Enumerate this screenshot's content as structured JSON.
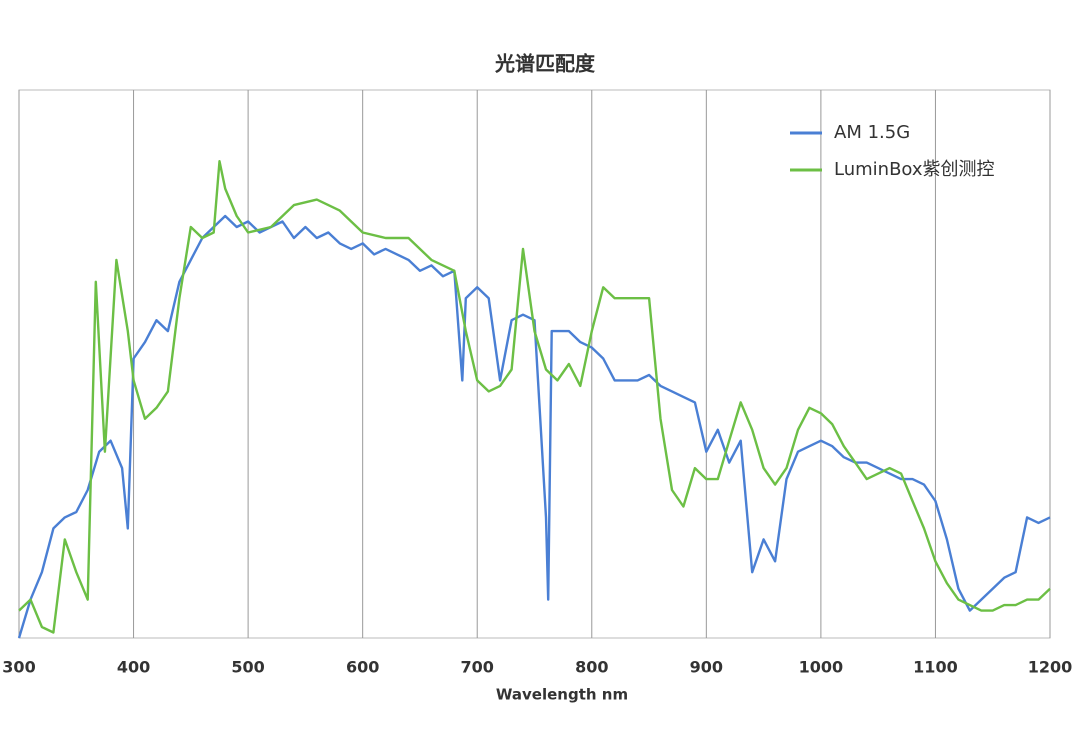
{
  "chart_data": {
    "type": "line",
    "title": "光谱匹配度",
    "x_label": "Wavelength nm",
    "xlim": [
      300,
      1200
    ],
    "xticks": [
      300,
      400,
      500,
      600,
      700,
      800,
      900,
      1000,
      1100,
      1200
    ],
    "ylim": [
      0,
      100
    ],
    "grid": true,
    "legend": "upper right",
    "series": [
      {
        "name": "AM 1.5G",
        "color": "#4a7fd4",
        "x": [
          300,
          310,
          320,
          330,
          340,
          350,
          360,
          370,
          380,
          390,
          395,
          400,
          410,
          420,
          430,
          440,
          450,
          460,
          470,
          480,
          490,
          500,
          510,
          520,
          530,
          540,
          550,
          560,
          570,
          580,
          590,
          600,
          610,
          620,
          630,
          640,
          650,
          660,
          670,
          680,
          687,
          690,
          700,
          710,
          720,
          730,
          740,
          750,
          760,
          762,
          765,
          780,
          790,
          800,
          810,
          820,
          830,
          840,
          850,
          860,
          870,
          880,
          890,
          900,
          910,
          920,
          930,
          940,
          950,
          960,
          970,
          980,
          990,
          1000,
          1010,
          1020,
          1030,
          1040,
          1050,
          1060,
          1070,
          1080,
          1090,
          1100,
          1110,
          1120,
          1130,
          1140,
          1150,
          1160,
          1170,
          1180,
          1190,
          1200
        ],
        "values": [
          0,
          7,
          12,
          20,
          22,
          23,
          27,
          34,
          36,
          31,
          20,
          51,
          54,
          58,
          56,
          65,
          69,
          73,
          75,
          77,
          75,
          76,
          74,
          75,
          76,
          73,
          75,
          73,
          74,
          72,
          71,
          72,
          70,
          71,
          70,
          69,
          67,
          68,
          66,
          67,
          47,
          62,
          64,
          62,
          47,
          58,
          59,
          58,
          22,
          7,
          56,
          56,
          54,
          53,
          51,
          47,
          47,
          47,
          48,
          46,
          45,
          44,
          43,
          34,
          38,
          32,
          36,
          12,
          18,
          14,
          29,
          34,
          35,
          36,
          35,
          33,
          32,
          32,
          31,
          30,
          29,
          29,
          28,
          25,
          18,
          9,
          5,
          7,
          9,
          11,
          12,
          22,
          21,
          22
        ]
      },
      {
        "name": "LuminBox紫创测控",
        "color": "#6cbf45",
        "x": [
          300,
          310,
          320,
          330,
          340,
          350,
          360,
          367,
          375,
          385,
          395,
          400,
          410,
          420,
          430,
          440,
          450,
          460,
          470,
          475,
          480,
          490,
          500,
          520,
          540,
          560,
          580,
          600,
          620,
          640,
          660,
          680,
          690,
          700,
          710,
          720,
          730,
          740,
          750,
          760,
          770,
          780,
          790,
          800,
          810,
          820,
          830,
          840,
          850,
          860,
          870,
          880,
          890,
          900,
          910,
          920,
          930,
          940,
          950,
          960,
          970,
          980,
          990,
          1000,
          1010,
          1020,
          1030,
          1040,
          1050,
          1060,
          1070,
          1080,
          1090,
          1100,
          1110,
          1120,
          1130,
          1140,
          1150,
          1160,
          1170,
          1180,
          1190,
          1200
        ],
        "values": [
          5,
          7,
          2,
          1,
          18,
          12,
          7,
          65,
          34,
          69,
          56,
          47,
          40,
          42,
          45,
          62,
          75,
          73,
          74,
          87,
          82,
          77,
          74,
          75,
          79,
          80,
          78,
          74,
          73,
          73,
          69,
          67,
          56,
          47,
          45,
          46,
          49,
          71,
          56,
          49,
          47,
          50,
          46,
          56,
          64,
          62,
          62,
          62,
          62,
          40,
          27,
          24,
          31,
          29,
          29,
          36,
          43,
          38,
          31,
          28,
          31,
          38,
          42,
          41,
          39,
          35,
          32,
          29,
          30,
          31,
          30,
          25,
          20,
          14,
          10,
          7,
          6,
          5,
          5,
          6,
          6,
          7,
          7,
          9
        ]
      }
    ]
  }
}
